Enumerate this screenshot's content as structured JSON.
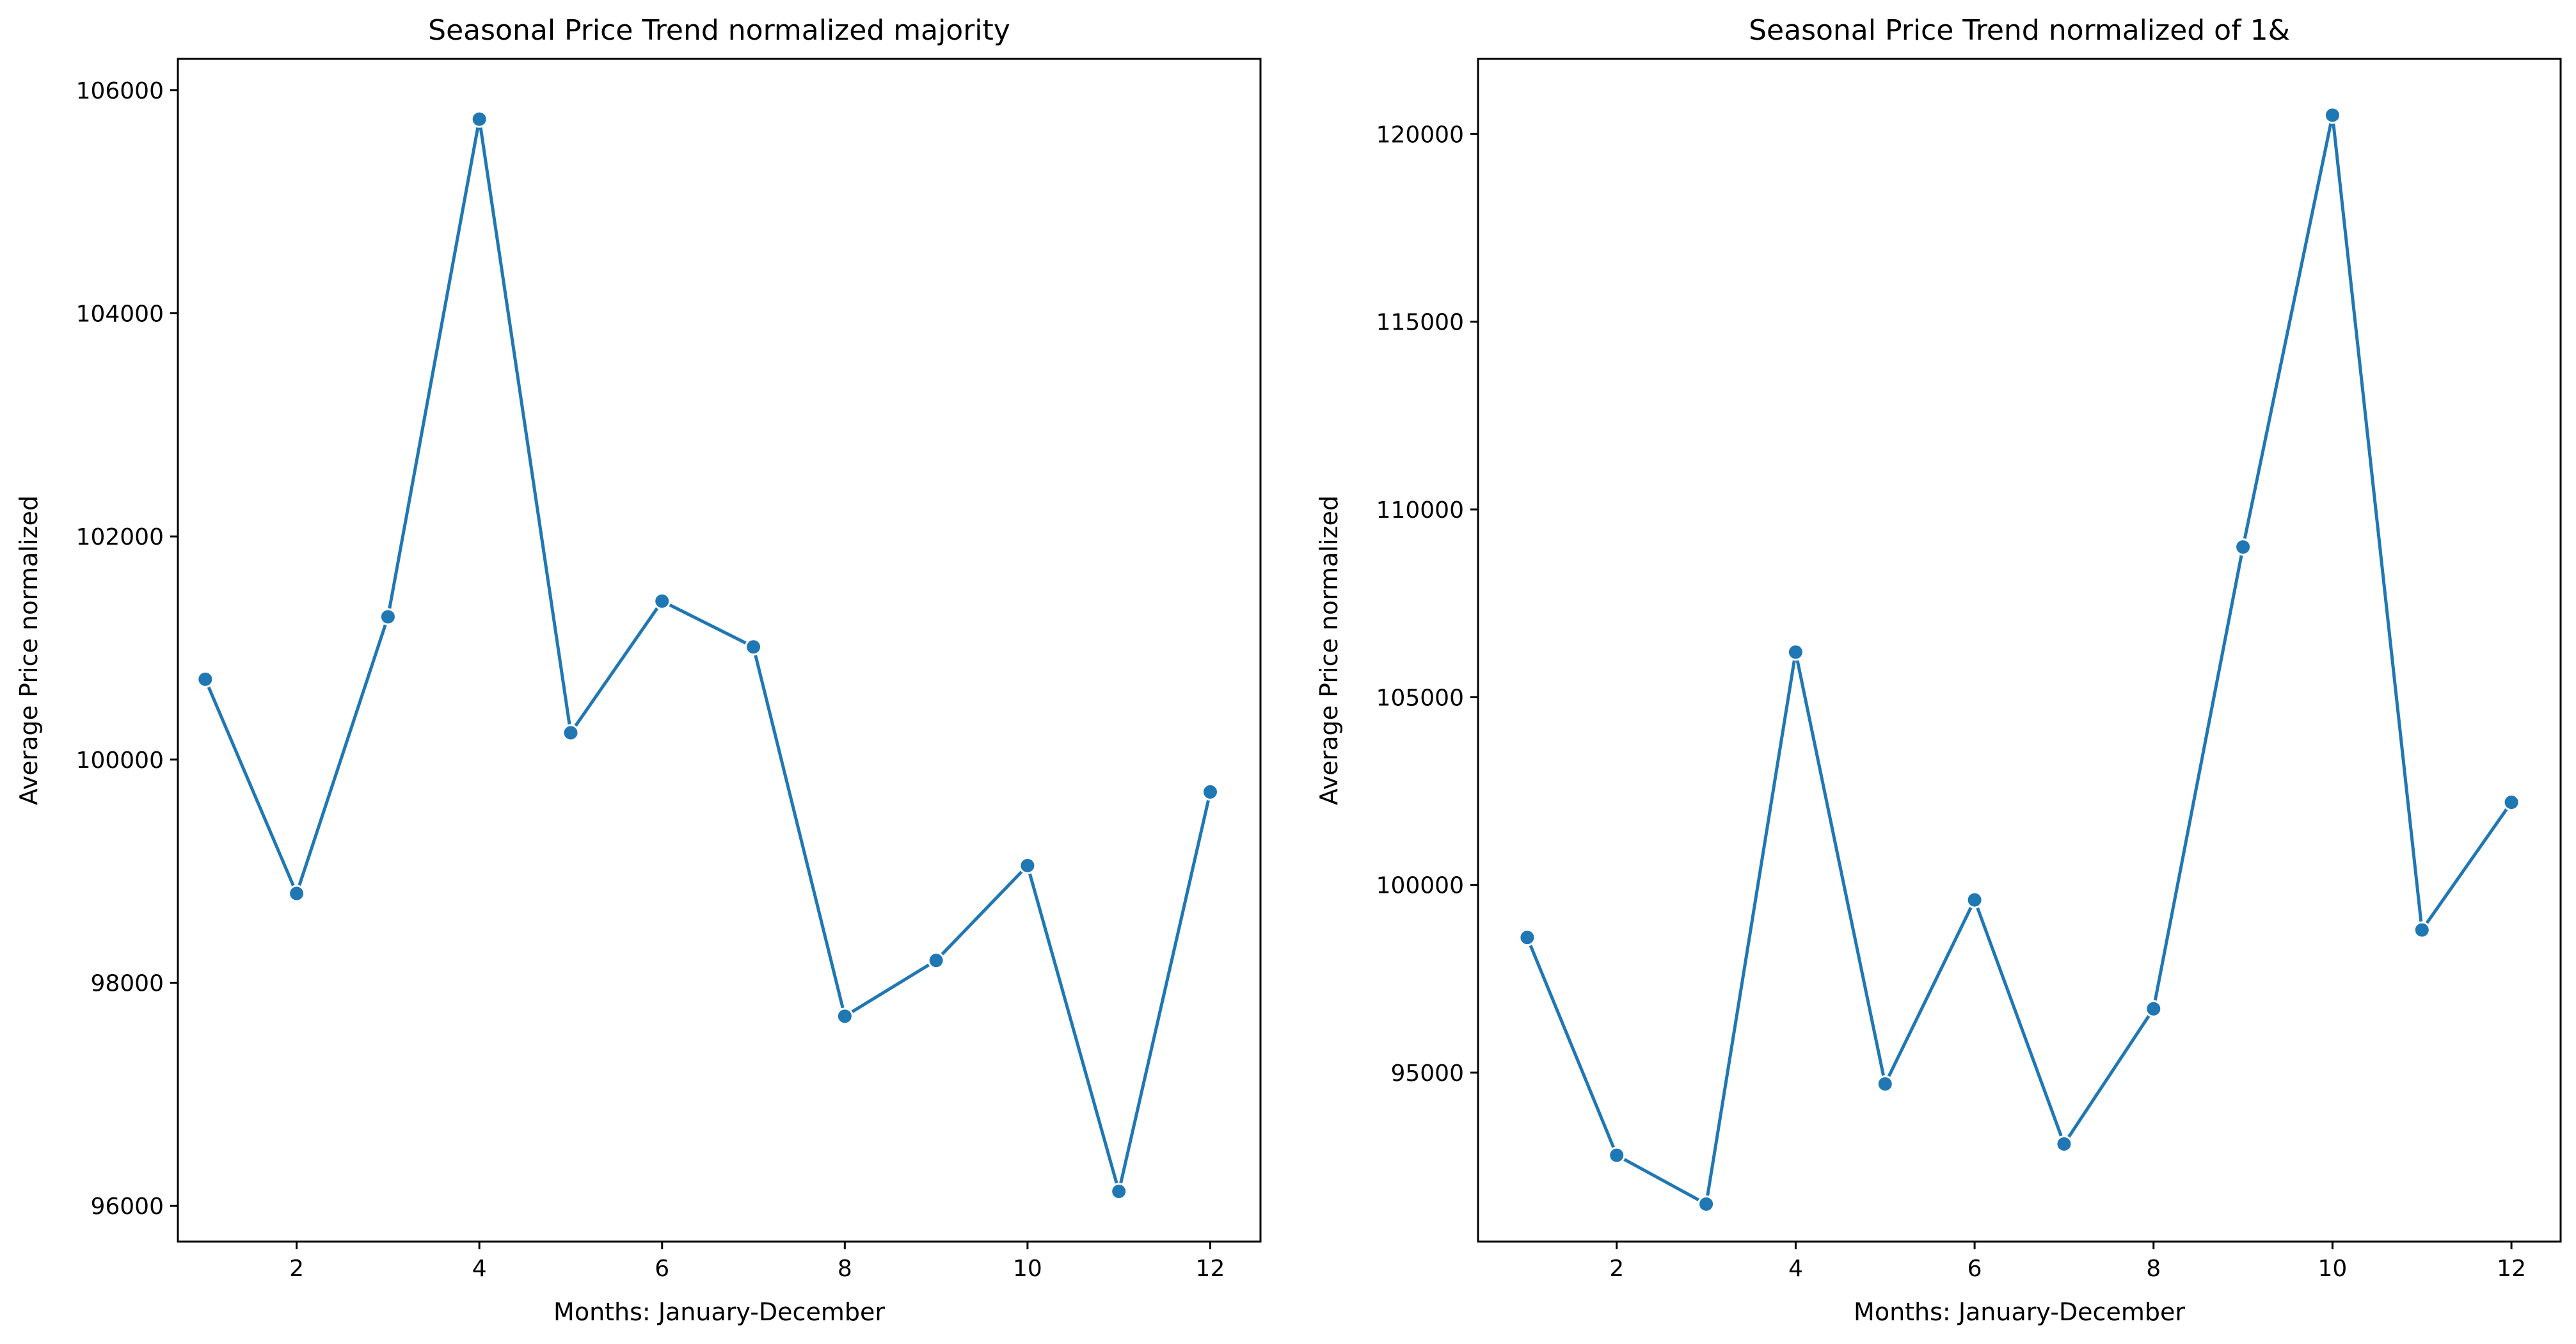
{
  "chart_data": [
    {
      "type": "line",
      "title": "Seasonal Price Trend normalized majority",
      "xlabel": "Months: January-December",
      "ylabel": "Average Price normalized",
      "xlim": [
        0.7,
        12.55
      ],
      "ylim": [
        95680,
        106280
      ],
      "xticks": [
        2,
        4,
        6,
        8,
        10,
        12
      ],
      "xtick_labels": [
        "2",
        "4",
        "6",
        "8",
        "10",
        "12"
      ],
      "yticks": [
        96000,
        98000,
        100000,
        102000,
        104000,
        106000
      ],
      "ytick_labels": [
        "96000",
        "98000",
        "100000",
        "102000",
        "104000",
        "106000"
      ],
      "grid": false,
      "series": [
        {
          "color": "#1f77b4",
          "marker": "circle",
          "x": [
            1,
            2,
            3,
            4,
            5,
            6,
            7,
            8,
            9,
            10,
            11,
            12
          ],
          "values": [
            100720,
            98800,
            101280,
            105740,
            100240,
            101420,
            101010,
            97700,
            98200,
            99050,
            96130,
            99710
          ]
        }
      ]
    },
    {
      "type": "line",
      "title": "Seasonal Price Trend normalized of 1&",
      "xlabel": "Months: January-December",
      "ylabel": "Average Price normalized",
      "xlim": [
        0.45,
        12.55
      ],
      "ylim": [
        90500,
        122000
      ],
      "xticks": [
        2,
        4,
        6,
        8,
        10,
        12
      ],
      "xtick_labels": [
        "2",
        "4",
        "6",
        "8",
        "10",
        "12"
      ],
      "yticks": [
        95000,
        100000,
        105000,
        110000,
        115000,
        120000
      ],
      "ytick_labels": [
        "95000",
        "100000",
        "105000",
        "110000",
        "115000",
        "120000"
      ],
      "grid": false,
      "series": [
        {
          "color": "#1f77b4",
          "marker": "circle",
          "x": [
            1,
            2,
            3,
            4,
            5,
            6,
            7,
            8,
            9,
            10,
            11,
            12
          ],
          "values": [
            98600,
            92800,
            91500,
            106200,
            94700,
            99600,
            93100,
            96700,
            109000,
            120500,
            98800,
            102200
          ]
        }
      ]
    }
  ]
}
